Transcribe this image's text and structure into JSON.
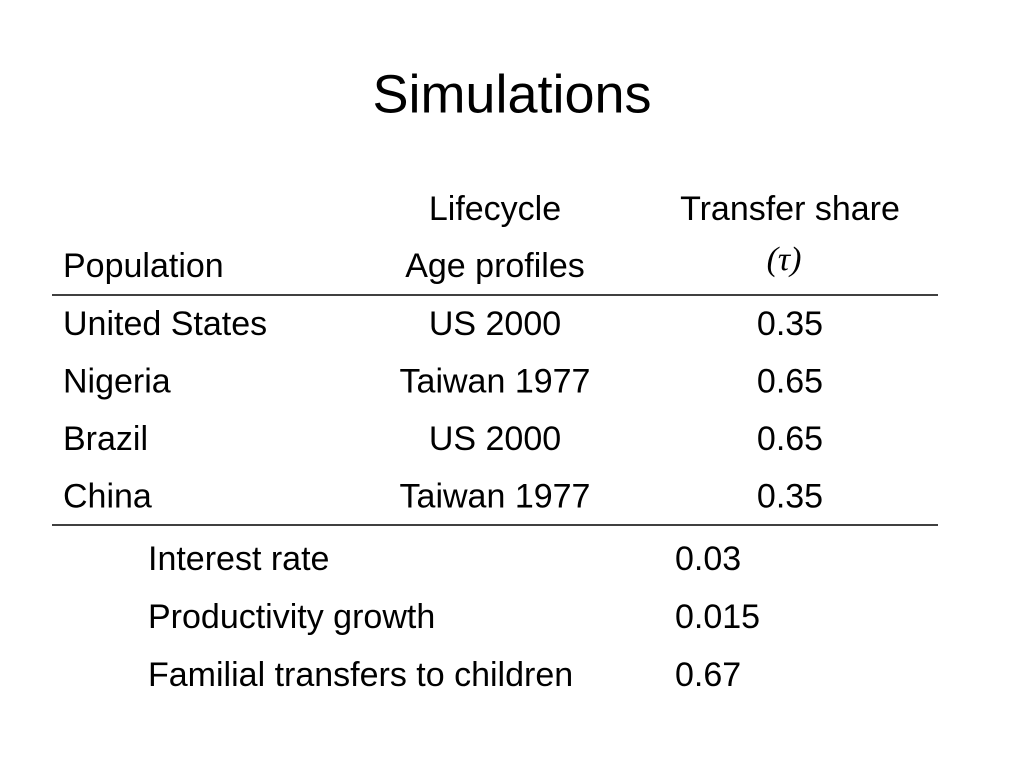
{
  "title": "Simulations",
  "table": {
    "header": [
      [
        "Population"
      ],
      [
        "Lifecycle",
        "Age profiles"
      ],
      [
        "Transfer share",
        "(τ)"
      ]
    ],
    "rows": [
      [
        "United States",
        "US 2000",
        "0.35"
      ],
      [
        "Nigeria",
        "Taiwan 1977",
        "0.65"
      ],
      [
        "Brazil",
        "US 2000",
        "0.65"
      ],
      [
        "China",
        "Taiwan 1977",
        "0.35"
      ]
    ]
  },
  "parameters": [
    [
      "Interest rate",
      "0.03"
    ],
    [
      "Productivity growth",
      "0.015"
    ],
    [
      "Familial transfers to children",
      "0.67"
    ]
  ]
}
